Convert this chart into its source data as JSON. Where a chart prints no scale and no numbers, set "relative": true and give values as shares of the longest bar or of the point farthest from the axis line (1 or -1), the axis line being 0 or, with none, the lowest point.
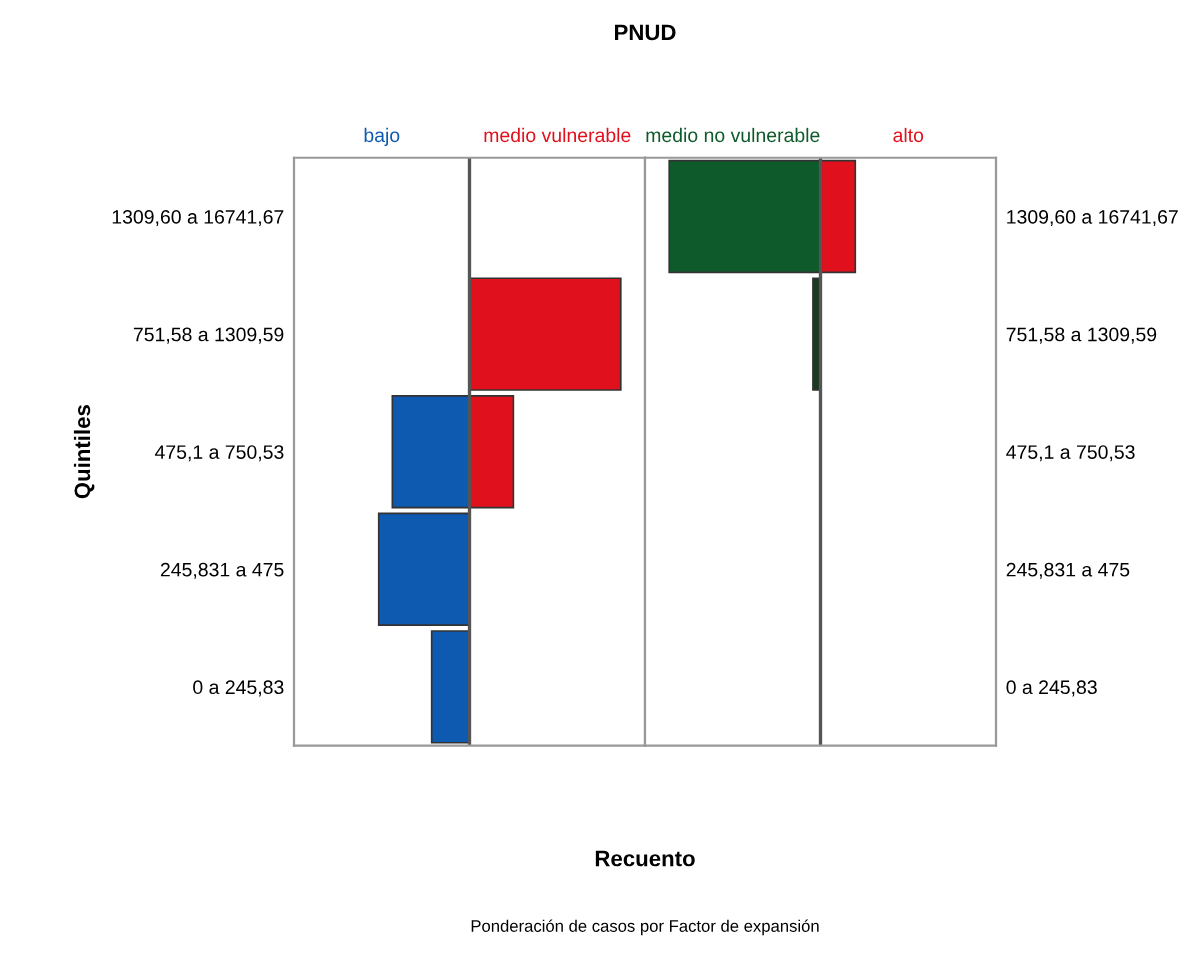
{
  "chart_data": [
    {
      "type": "bar",
      "orientation": "horizontal",
      "relative": true,
      "title": "PNUD",
      "ylabel": "Quintiles",
      "xlabel": "Recuento",
      "annotations": [
        "Ponderación de casos por Factor de expansión"
      ],
      "categories": [
        "1309,60 a 16741,67",
        "751,58 a 1309,59",
        "475,1 a 750,53",
        "245,831 a 475",
        "0 a 245,83"
      ],
      "series": [
        {
          "name": "bajo",
          "values": [
            null,
            null,
            -0.51,
            -0.6,
            -0.25
          ],
          "colors": [
            "#0d5ab0",
            "#0d5ab0",
            "#0d5ab0",
            "#0d5ab0",
            "#0d5ab0"
          ]
        },
        {
          "name": "medio vulnerable",
          "values": [
            null,
            1,
            0.29,
            null,
            null
          ],
          "colors": [
            "#e0101c",
            "#e0101c",
            "#e0101c",
            "#e0101c",
            "#e0101c"
          ]
        }
      ]
    },
    {
      "type": "bar",
      "orientation": "horizontal",
      "relative": true,
      "categories": [
        "1309,60 a 16741,67",
        "751,58 a 1309,59",
        "475,1 a 750,53",
        "245,831 a 475",
        "0 a 245,83"
      ],
      "series": [
        {
          "name": "medio no vulnerable",
          "values": [
            -1,
            -0.05,
            null,
            null,
            null
          ],
          "colors": [
            "#0f5a2a",
            "#1a3a20",
            "#0f5a2a",
            "#0f5a2a",
            "#0f5a2a"
          ]
        },
        {
          "name": "alto",
          "values": [
            0.23,
            null,
            null,
            null,
            null
          ],
          "colors": [
            "#e0101c",
            "#e0101c",
            "#e0101c",
            "#e0101c",
            "#e0101c"
          ]
        }
      ]
    }
  ]
}
